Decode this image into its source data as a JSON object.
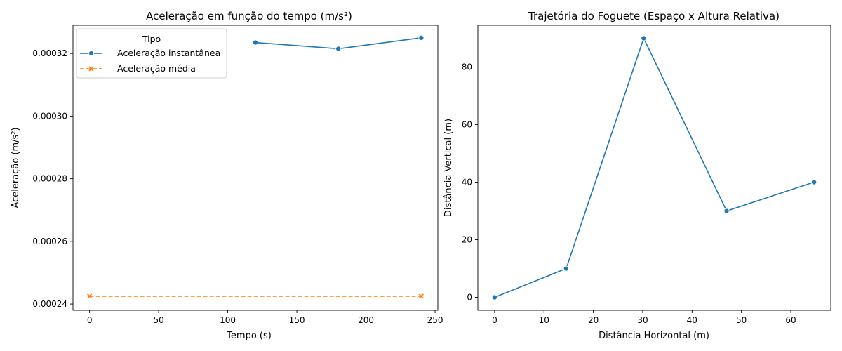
{
  "chart_data": [
    {
      "type": "line",
      "title": "Aceleração em função do tempo (m/s²)",
      "xlabel": "Tempo (s)",
      "ylabel": "Aceleração (m/s²)",
      "xlim": [
        -12,
        252
      ],
      "ylim": [
        0.000238,
        0.000329
      ],
      "x_ticks": [
        0,
        50,
        100,
        150,
        200,
        250
      ],
      "y_ticks": [
        0.00024,
        0.00026,
        0.00028,
        0.0003,
        0.00032
      ],
      "x_tick_labels": [
        "0",
        "50",
        "100",
        "150",
        "200",
        "250"
      ],
      "y_tick_labels": [
        "0.00024",
        "0.00026",
        "0.00028",
        "0.00030",
        "0.00032"
      ],
      "grid": false,
      "legend": {
        "title": "Tipo",
        "placement": "top-left",
        "entries": [
          "Aceleração instantânea",
          "Aceleração média"
        ]
      },
      "series": [
        {
          "name": "Aceleração instantânea",
          "color": "#1f77b4",
          "marker": "circle",
          "linestyle": "solid",
          "x": [
            120,
            180,
            240
          ],
          "y": [
            0.0003235,
            0.0003215,
            0.000325
          ]
        },
        {
          "name": "Aceleração média",
          "color": "#ff7f0e",
          "marker": "x",
          "linestyle": "dashed",
          "x": [
            0,
            240
          ],
          "y": [
            0.0002425,
            0.0002425
          ]
        }
      ]
    },
    {
      "type": "line",
      "title": "Trajetória do Foguete (Espaço x Altura Relativa)",
      "xlabel": "Distância Horizontal (m)",
      "ylabel": "Distância Vertical (m)",
      "xlim": [
        -3.4,
        68.1
      ],
      "ylim": [
        -4.5,
        94.5
      ],
      "x_ticks": [
        0,
        10,
        20,
        30,
        40,
        50,
        60
      ],
      "y_ticks": [
        0,
        20,
        40,
        60,
        80
      ],
      "x_tick_labels": [
        "0",
        "10",
        "20",
        "30",
        "40",
        "50",
        "60"
      ],
      "y_tick_labels": [
        "0",
        "20",
        "40",
        "60",
        "80"
      ],
      "grid": false,
      "series": [
        {
          "color": "#1f77b4",
          "marker": "circle",
          "linestyle": "solid",
          "x": [
            0,
            14.5,
            30.2,
            47,
            64.7
          ],
          "y": [
            0,
            10,
            90,
            30,
            40
          ]
        }
      ]
    }
  ]
}
